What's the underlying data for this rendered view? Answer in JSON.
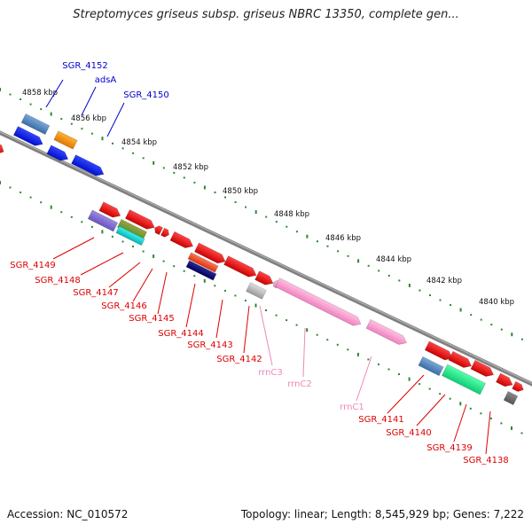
{
  "title": "Streptomyces griseus subsp. griseus NBRC 13350, complete gen...",
  "footer": {
    "accession": "Accession: NC_010572",
    "topology": "Topology: linear; Length: 8,545,929 bp; Genes: 7,222"
  },
  "colors": {
    "backbone": "#808080",
    "forward_label": "#0000cc",
    "reverse_label": "#dd0000",
    "rrna_label": "#ee88bb",
    "tick": "#2a8a2a"
  },
  "scale_labels": [
    "4858 kbp",
    "4856 kbp",
    "4854 kbp",
    "4852 kbp",
    "4850 kbp",
    "4848 kbp",
    "4846 kbp",
    "4844 kbp",
    "4842 kbp",
    "4840 kbp"
  ],
  "forward_labels": [
    {
      "name": "SGR_4152"
    },
    {
      "name": "adsA"
    },
    {
      "name": "SGR_4150"
    }
  ],
  "reverse_labels": [
    {
      "name": "SGR_4149"
    },
    {
      "name": "SGR_4148"
    },
    {
      "name": "SGR_4147"
    },
    {
      "name": "SGR_4146"
    },
    {
      "name": "SGR_4145"
    },
    {
      "name": "SGR_4144"
    },
    {
      "name": "SGR_4143"
    },
    {
      "name": "SGR_4142"
    },
    {
      "name": "SGR_4141"
    },
    {
      "name": "SGR_4140"
    },
    {
      "name": "SGR_4139"
    },
    {
      "name": "SGR_4138"
    }
  ],
  "rrna_labels": [
    {
      "name": "rrnC3"
    },
    {
      "name": "rrnC2"
    },
    {
      "name": "rrnC1"
    }
  ]
}
